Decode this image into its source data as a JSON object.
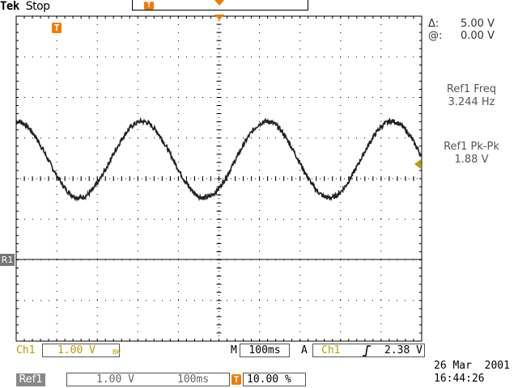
{
  "brand": {
    "name": "Tek",
    "status": "Stop"
  },
  "cursor": {
    "delta_label": "Δ:",
    "delta_value": "5.00 V",
    "at_label": "@:",
    "at_value": "0.00 V"
  },
  "measurements": [
    {
      "label": "Ref1 Freq",
      "value": "3.244 Hz"
    },
    {
      "label": "Ref1 Pk-Pk",
      "value": "1.88 V"
    }
  ],
  "markers": {
    "trigger": "T",
    "ref": "R1"
  },
  "channel_settings": {
    "channel": "Ch1",
    "volts_div": "1.00 V",
    "bw_limit": "BW",
    "timebase_label": "M",
    "timebase": "100ms",
    "trigger_label": "A",
    "trigger_source": "Ch1",
    "trigger_slope": "rising-edge-icon",
    "trigger_level": "2.38 V"
  },
  "ref_settings": {
    "ref": "Ref1",
    "volts_div": "1.00 V",
    "timebase": "100ms",
    "trigger_position_marker": "T",
    "trigger_position": "10.00 %"
  },
  "datetime": {
    "date": "26 Mar  2001",
    "time": "16:44:26"
  },
  "colors": {
    "trigger_marker": "#f47a00",
    "channel1": "#b8a000",
    "ref_tag": "#888888"
  },
  "chart_data": {
    "type": "line",
    "series": [
      {
        "x_s": [
          0.0,
          0.056,
          0.21,
          0.364,
          0.52,
          0.674,
          0.828,
          0.98
        ],
        "y_v": [
          -0.3,
          -0.47,
          1.41,
          -0.47,
          1.41,
          -0.47,
          1.41,
          -0.3
        ]
      }
    ],
    "x_range_s": [
      -0.1,
      0.9
    ],
    "y_range_v": [
      -4,
      4
    ],
    "frequency_hz": 3.244,
    "pk_pk_v": 1.88,
    "grid": true,
    "divisions": {
      "x": 10,
      "y": 8
    }
  }
}
